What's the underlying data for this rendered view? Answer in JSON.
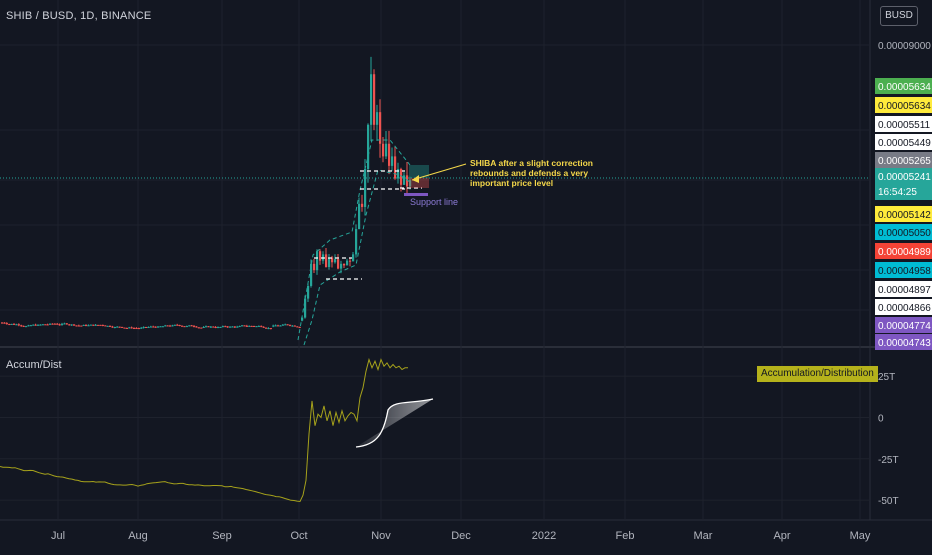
{
  "header": {
    "symbol_title": "SHIB / BUSD, 1D, BINANCE",
    "currency": "BUSD"
  },
  "indicator": {
    "name": "Accum/Dist",
    "label": "Accumulation/Distribution"
  },
  "annotations": {
    "callout": [
      "SHIBA after a slight correction",
      "rebounds and defends a very",
      "important price level"
    ],
    "support": "Support line"
  },
  "colors": {
    "background": "#131722",
    "up": "#26a69a",
    "down": "#ef5350",
    "ad_line": "#a6a21b",
    "grid": "#1e222d",
    "axis_text": "#b2b5be",
    "callout_text": "#f5d84a",
    "support": "#7e57c2",
    "dashes": "#26a69a"
  },
  "chart_data": [
    {
      "type": "candlestick",
      "title": "SHIB / BUSD, 1D, BINANCE",
      "x_ticks": [
        "Jul",
        "Aug",
        "Sep",
        "Oct",
        "Nov",
        "Dec",
        "2022",
        "Feb",
        "Mar",
        "Apr",
        "May"
      ],
      "y_ticks": [
        "0.00009000"
      ],
      "ylim": [
        0.0,
        0.0001
      ],
      "price_labels": [
        {
          "text": "0.00005634",
          "bg": "#4caf50",
          "fg": "#ffffff"
        },
        {
          "text": "0.00005634",
          "bg": "#ffeb3b",
          "fg": "#131722"
        },
        {
          "text": "0.00005511",
          "bg": "#ffffff",
          "fg": "#131722"
        },
        {
          "text": "0.00005449",
          "bg": "#ffffff",
          "fg": "#131722"
        },
        {
          "text": "0.00005265",
          "bg": "#787b86",
          "fg": "#ffffff"
        },
        {
          "text": "0.00005241",
          "bg": "#26a69a",
          "fg": "#ffffff",
          "sub": "16:54:25"
        },
        {
          "text": "0.00005142",
          "bg": "#ffeb3b",
          "fg": "#131722"
        },
        {
          "text": "0.00005050",
          "bg": "#00bcd4",
          "fg": "#131722"
        },
        {
          "text": "0.00004989",
          "bg": "#f44336",
          "fg": "#ffffff"
        },
        {
          "text": "0.00004958",
          "bg": "#00bcd4",
          "fg": "#131722"
        },
        {
          "text": "0.00004897",
          "bg": "#ffffff",
          "fg": "#131722"
        },
        {
          "text": "0.00004866",
          "bg": "#ffffff",
          "fg": "#131722"
        },
        {
          "text": "0.00004774",
          "bg": "#7e57c2",
          "fg": "#ffffff"
        },
        {
          "text": "0.00004743",
          "bg": "#7e57c2",
          "fg": "#ffffff"
        }
      ]
    },
    {
      "type": "line",
      "title": "Accum/Dist",
      "y_ticks": [
        "25T",
        "0",
        "-25T",
        "-50T"
      ],
      "y_tick_values": [
        25,
        0,
        -25,
        -50
      ],
      "ylim": [
        -62,
        42
      ],
      "series": [
        {
          "name": "Accumulation/Distribution"
        }
      ]
    }
  ]
}
